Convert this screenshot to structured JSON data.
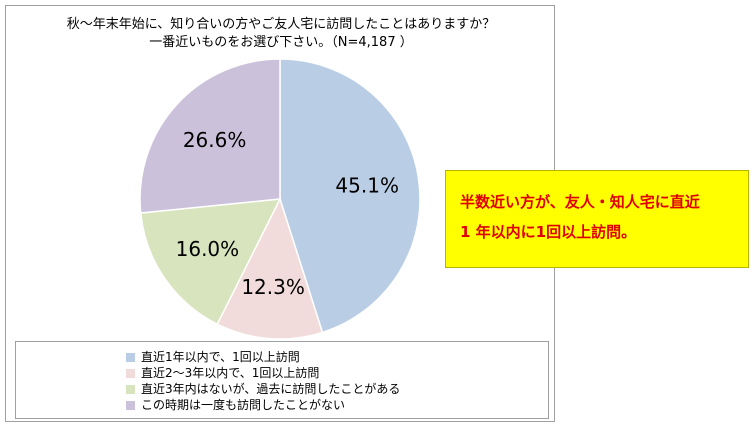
{
  "chart_data": {
    "type": "pie",
    "title": [
      "秋～年末年始に、知り合いの方やご友人宅に訪問したことはありますか？",
      "一番近いものをお選び下さい。（N=4,187 ）"
    ],
    "slices": [
      {
        "label": "直近1年以内で、1回以上訪問",
        "value": 45.1,
        "value_label": "45.1%",
        "color": "#b9cde5"
      },
      {
        "label": "直近2～3年以内で、1回以上訪問",
        "value": 12.3,
        "value_label": "12.3%",
        "color": "#f2dcdb"
      },
      {
        "label": "直近3年内はないが、過去に訪問したことがある",
        "value": 16.0,
        "value_label": "16.0%",
        "color": "#d7e4bd"
      },
      {
        "label": "この時期は一度も訪問したことがない",
        "value": 26.6,
        "value_label": "26.6%",
        "color": "#ccc1da"
      }
    ],
    "legend_position": "bottom"
  },
  "callout": {
    "lines": [
      "半数近い方が、友人・知人宅に直近",
      "1 年以内に1回以上訪問。"
    ],
    "background": "#ffff00",
    "text_color": "#e00000"
  }
}
